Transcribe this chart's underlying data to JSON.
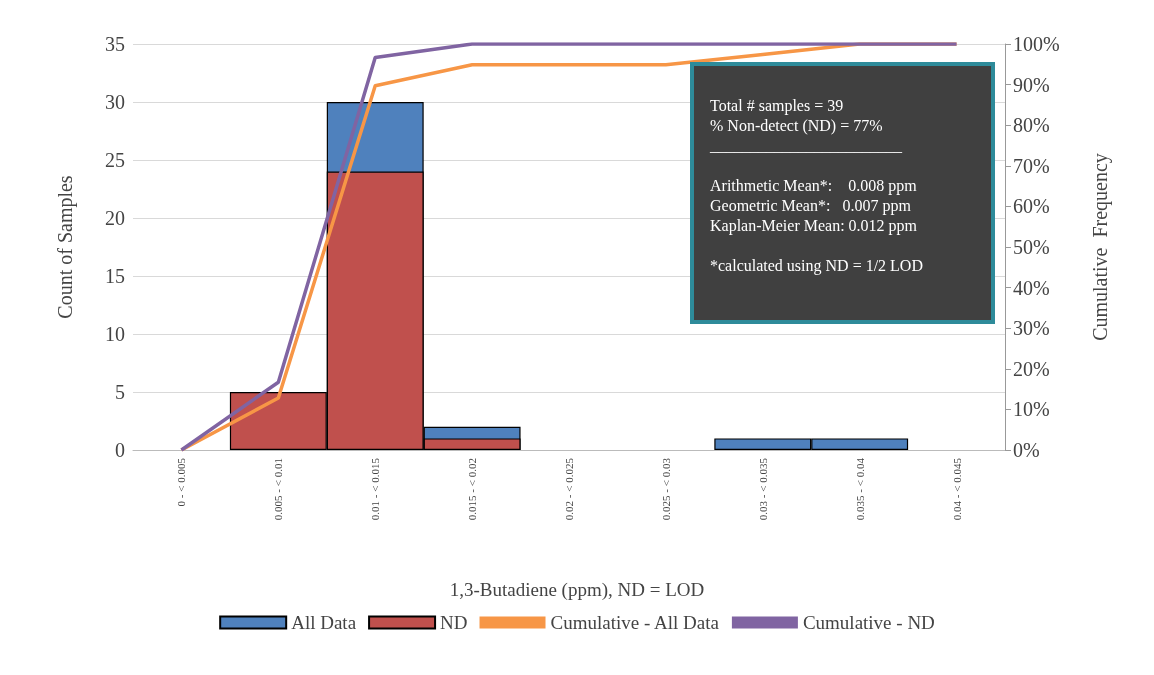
{
  "chart_data": {
    "type": "bar",
    "xlabel": "1,3-Butadiene (ppm), ND = LOD",
    "ylabel": "Count of Samples",
    "y2label": "Cumulative  Frequency",
    "categories": [
      "0 - < 0.005",
      "0.005 - < 0.01",
      "0.01 - < 0.015",
      "0.015 - < 0.02",
      "0.02 - < 0.025",
      "0.025 - < 0.03",
      "0.03 - < 0.035",
      "0.035 - < 0.04",
      "0.04 - < 0.045"
    ],
    "series": [
      {
        "name": "All Data",
        "color": "#4f81bd",
        "values": [
          0,
          null,
          30,
          2,
          0,
          0,
          1,
          1,
          0
        ]
      },
      {
        "name": "ND",
        "color": "#c0504d",
        "values": [
          0,
          5,
          24,
          1,
          0,
          0,
          0,
          0,
          0
        ]
      },
      {
        "name": "Cumulative - All Data",
        "type": "line",
        "axis": "y2",
        "color": "#f79646",
        "values": [
          0,
          12.8,
          89.7,
          94.9,
          94.9,
          94.9,
          97.4,
          100,
          100
        ]
      },
      {
        "name": "Cumulative - ND",
        "type": "line",
        "axis": "y2",
        "color": "#8064a2",
        "values": [
          0,
          16.7,
          96.7,
          100,
          100,
          100,
          100,
          100,
          100
        ]
      }
    ],
    "ylim": [
      0,
      35
    ],
    "yticks": [
      0,
      5,
      10,
      15,
      20,
      25,
      30,
      35
    ],
    "y2lim": [
      0,
      100
    ],
    "y2ticks": [
      {
        "value": 0,
        "label": "0%"
      },
      {
        "value": 10,
        "label": "10%"
      },
      {
        "value": 20,
        "label": "20%"
      },
      {
        "value": 30,
        "label": "30%"
      },
      {
        "value": 40,
        "label": "40%"
      },
      {
        "value": 50,
        "label": "50%"
      },
      {
        "value": 60,
        "label": "60%"
      },
      {
        "value": 70,
        "label": "70%"
      },
      {
        "value": 80,
        "label": "80%"
      },
      {
        "value": 90,
        "label": "90%"
      },
      {
        "value": 100,
        "label": "100%"
      }
    ],
    "grid": "y",
    "legend": "bottom",
    "marker": "none",
    "annotations": [
      "Total # samples = 39",
      "% Non-detect (ND) = 77%",
      "________________________",
      "Arithmetic Mean*:    0.008 ppm",
      "Geometric Mean*:   0.007 ppm",
      "Kaplan-Meier Mean: 0.012 ppm",
      "*calculated using ND = 1/2 LOD"
    ]
  }
}
